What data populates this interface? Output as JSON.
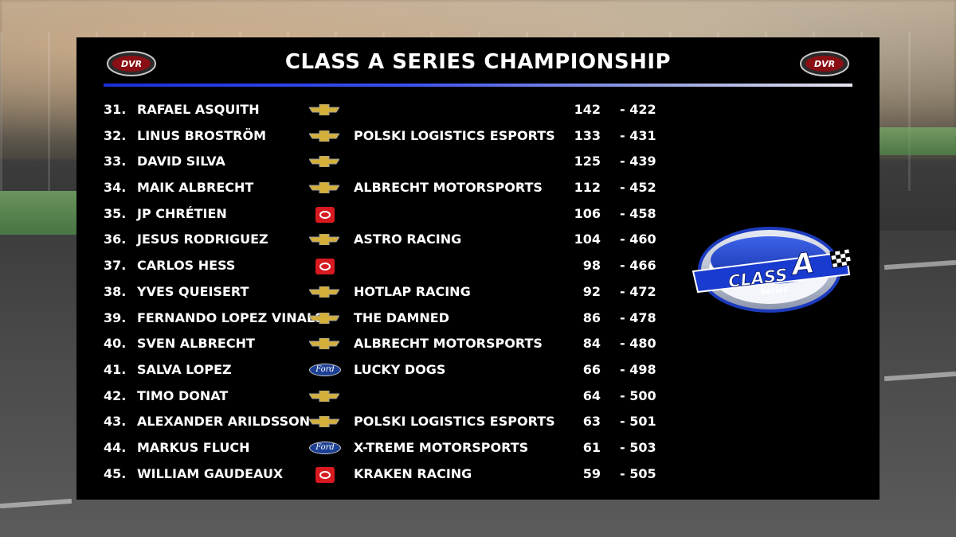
{
  "title": "CLASS A SERIES CHAMPIONSHIP",
  "header_logo_text": "DVR",
  "series_logo": {
    "line1": "CLASS",
    "line2": "A",
    "line3": "Series"
  },
  "colors": {
    "accent": "#1a2fd6",
    "panel": "#000000",
    "toyota": "#d71920",
    "ford": "#1c3f94",
    "chevy": "#d4b03a"
  },
  "standings": [
    {
      "pos": "31.",
      "name": "RAFAEL ASQUITH",
      "make": "chevrolet-icon",
      "ford_text": "",
      "team": "",
      "points": "142",
      "gap": "- 422"
    },
    {
      "pos": "32.",
      "name": "LINUS BROSTRÖM",
      "make": "chevrolet-icon",
      "ford_text": "",
      "team": "POLSKI LOGISTICS ESPORTS",
      "points": "133",
      "gap": "- 431"
    },
    {
      "pos": "33.",
      "name": "DAVID SILVA",
      "make": "chevrolet-icon",
      "ford_text": "",
      "team": "",
      "points": "125",
      "gap": "- 439"
    },
    {
      "pos": "34.",
      "name": "MAIK ALBRECHT",
      "make": "chevrolet-icon",
      "ford_text": "",
      "team": "ALBRECHT MOTORSPORTS",
      "points": "112",
      "gap": "- 452"
    },
    {
      "pos": "35.",
      "name": "JP CHRÉTIEN",
      "make": "toyota-icon",
      "ford_text": "",
      "team": "",
      "points": "106",
      "gap": "- 458"
    },
    {
      "pos": "36.",
      "name": "JESUS RODRIGUEZ",
      "make": "chevrolet-icon",
      "ford_text": "",
      "team": "ASTRO RACING",
      "points": "104",
      "gap": "- 460"
    },
    {
      "pos": "37.",
      "name": "CARLOS HESS",
      "make": "toyota-icon",
      "ford_text": "",
      "team": "",
      "points": "98",
      "gap": "- 466"
    },
    {
      "pos": "38.",
      "name": "YVES QUEISERT",
      "make": "chevrolet-icon",
      "ford_text": "",
      "team": "HOTLAP RACING",
      "points": "92",
      "gap": "- 472"
    },
    {
      "pos": "39.",
      "name": "FERNANDO LOPEZ VINALS",
      "make": "chevrolet-icon",
      "ford_text": "",
      "team": "THE DAMNED",
      "points": "86",
      "gap": "- 478"
    },
    {
      "pos": "40.",
      "name": "SVEN ALBRECHT",
      "make": "chevrolet-icon",
      "ford_text": "",
      "team": "ALBRECHT MOTORSPORTS",
      "points": "84",
      "gap": "- 480"
    },
    {
      "pos": "41.",
      "name": "SALVA LOPEZ",
      "make": "ford-icon",
      "ford_text": "Ford",
      "team": "LUCKY DOGS",
      "points": "66",
      "gap": "- 498"
    },
    {
      "pos": "42.",
      "name": "TIMO DONAT",
      "make": "chevrolet-icon",
      "ford_text": "",
      "team": "",
      "points": "64",
      "gap": "- 500"
    },
    {
      "pos": "43.",
      "name": "ALEXANDER ARILDSSON",
      "make": "chevrolet-icon",
      "ford_text": "",
      "team": "POLSKI LOGISTICS ESPORTS",
      "points": "63",
      "gap": "- 501"
    },
    {
      "pos": "44.",
      "name": "MARKUS FLUCH",
      "make": "ford-icon",
      "ford_text": "Ford",
      "team": "X-TREME MOTORSPORTS",
      "points": "61",
      "gap": "- 503"
    },
    {
      "pos": "45.",
      "name": "WILLIAM GAUDEAUX",
      "make": "toyota-icon",
      "ford_text": "",
      "team": "KRAKEN RACING",
      "points": "59",
      "gap": "- 505"
    }
  ]
}
